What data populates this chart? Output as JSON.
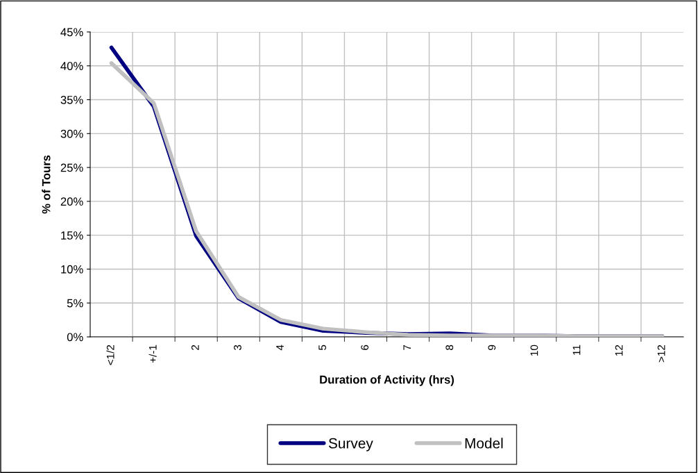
{
  "chart_data": {
    "type": "line",
    "xlabel": "Duration of Activity (hrs)",
    "ylabel": "% of Tours",
    "categories": [
      "<1/2",
      "+/-1",
      "2",
      "3",
      "4",
      "5",
      "6",
      "7",
      "8",
      "9",
      "10",
      "11",
      "12",
      ">12"
    ],
    "series": [
      {
        "name": "Survey",
        "color": "#000080",
        "values": [
          42.7,
          34,
          14.9,
          5.7,
          2.2,
          0.9,
          0.6,
          0.4,
          0.5,
          0.2,
          0.2,
          0.1,
          0.1,
          0.1
        ]
      },
      {
        "name": "Model",
        "color": "#c0c0c0",
        "values": [
          40.4,
          34.5,
          15.6,
          5.9,
          2.5,
          1.2,
          0.7,
          0.3,
          0.2,
          0.2,
          0.2,
          0.1,
          0.1,
          0.1
        ]
      }
    ],
    "ylim": [
      0,
      45
    ],
    "yticks": [
      {
        "value": 0,
        "label": "0%"
      },
      {
        "value": 5,
        "label": "5%"
      },
      {
        "value": 10,
        "label": "10%"
      },
      {
        "value": 15,
        "label": "15%"
      },
      {
        "value": 20,
        "label": "20%"
      },
      {
        "value": 25,
        "label": "25%"
      },
      {
        "value": 30,
        "label": "30%"
      },
      {
        "value": 35,
        "label": "35%"
      },
      {
        "value": 40,
        "label": "40%"
      },
      {
        "value": 45,
        "label": "45%"
      }
    ],
    "grid": true,
    "legend": "bottom",
    "marker": "none",
    "line_style": "solid"
  }
}
